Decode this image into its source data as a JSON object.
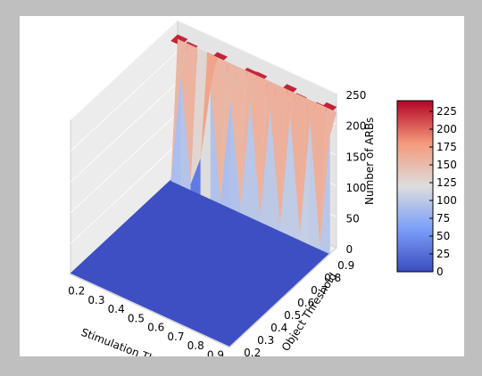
{
  "chart_data": {
    "type": "surface3d",
    "title": "",
    "xlabel": "Stimulation Threshold",
    "ylabel": "Object Threshold",
    "zlabel": "Number of ARBs",
    "x_ticks": [
      "0.2",
      "0.3",
      "0.4",
      "0.5",
      "0.6",
      "0.7",
      "0.8",
      "0.9"
    ],
    "y_ticks": [
      "0.2",
      "0.3",
      "0.4",
      "0.5",
      "0.6",
      "0.7",
      "0.8",
      "0.9"
    ],
    "z_ticks": [
      "0",
      "50",
      "100",
      "150",
      "200",
      "250"
    ],
    "x": [
      0.15,
      0.2,
      0.25,
      0.3,
      0.35,
      0.4,
      0.45,
      0.5,
      0.55,
      0.6,
      0.65,
      0.7,
      0.75,
      0.8,
      0.85,
      0.9,
      0.95
    ],
    "y": [
      0.15,
      0.2,
      0.25,
      0.3,
      0.35,
      0.4,
      0.45,
      0.5,
      0.55,
      0.6,
      0.65,
      0.7,
      0.75,
      0.8,
      0.85,
      0.9,
      0.95
    ],
    "front_row_y": 0.9,
    "front_row_z": [
      0,
      180,
      10,
      60,
      180,
      5,
      175,
      10,
      185,
      10,
      190,
      10,
      195,
      10,
      200,
      5,
      190
    ],
    "back_plateau_z": 220,
    "floor_z": 2,
    "zlim": [
      0,
      250
    ],
    "colorbar": {
      "ticks": [
        "0",
        "25",
        "50",
        "75",
        "100",
        "125",
        "150",
        "175",
        "200",
        "225"
      ],
      "min": 0,
      "max": 240,
      "colormap": "coolwarm"
    },
    "colors": {
      "low": "#3b4cc0",
      "mid": "#dddddd",
      "high": "#b40426"
    }
  }
}
